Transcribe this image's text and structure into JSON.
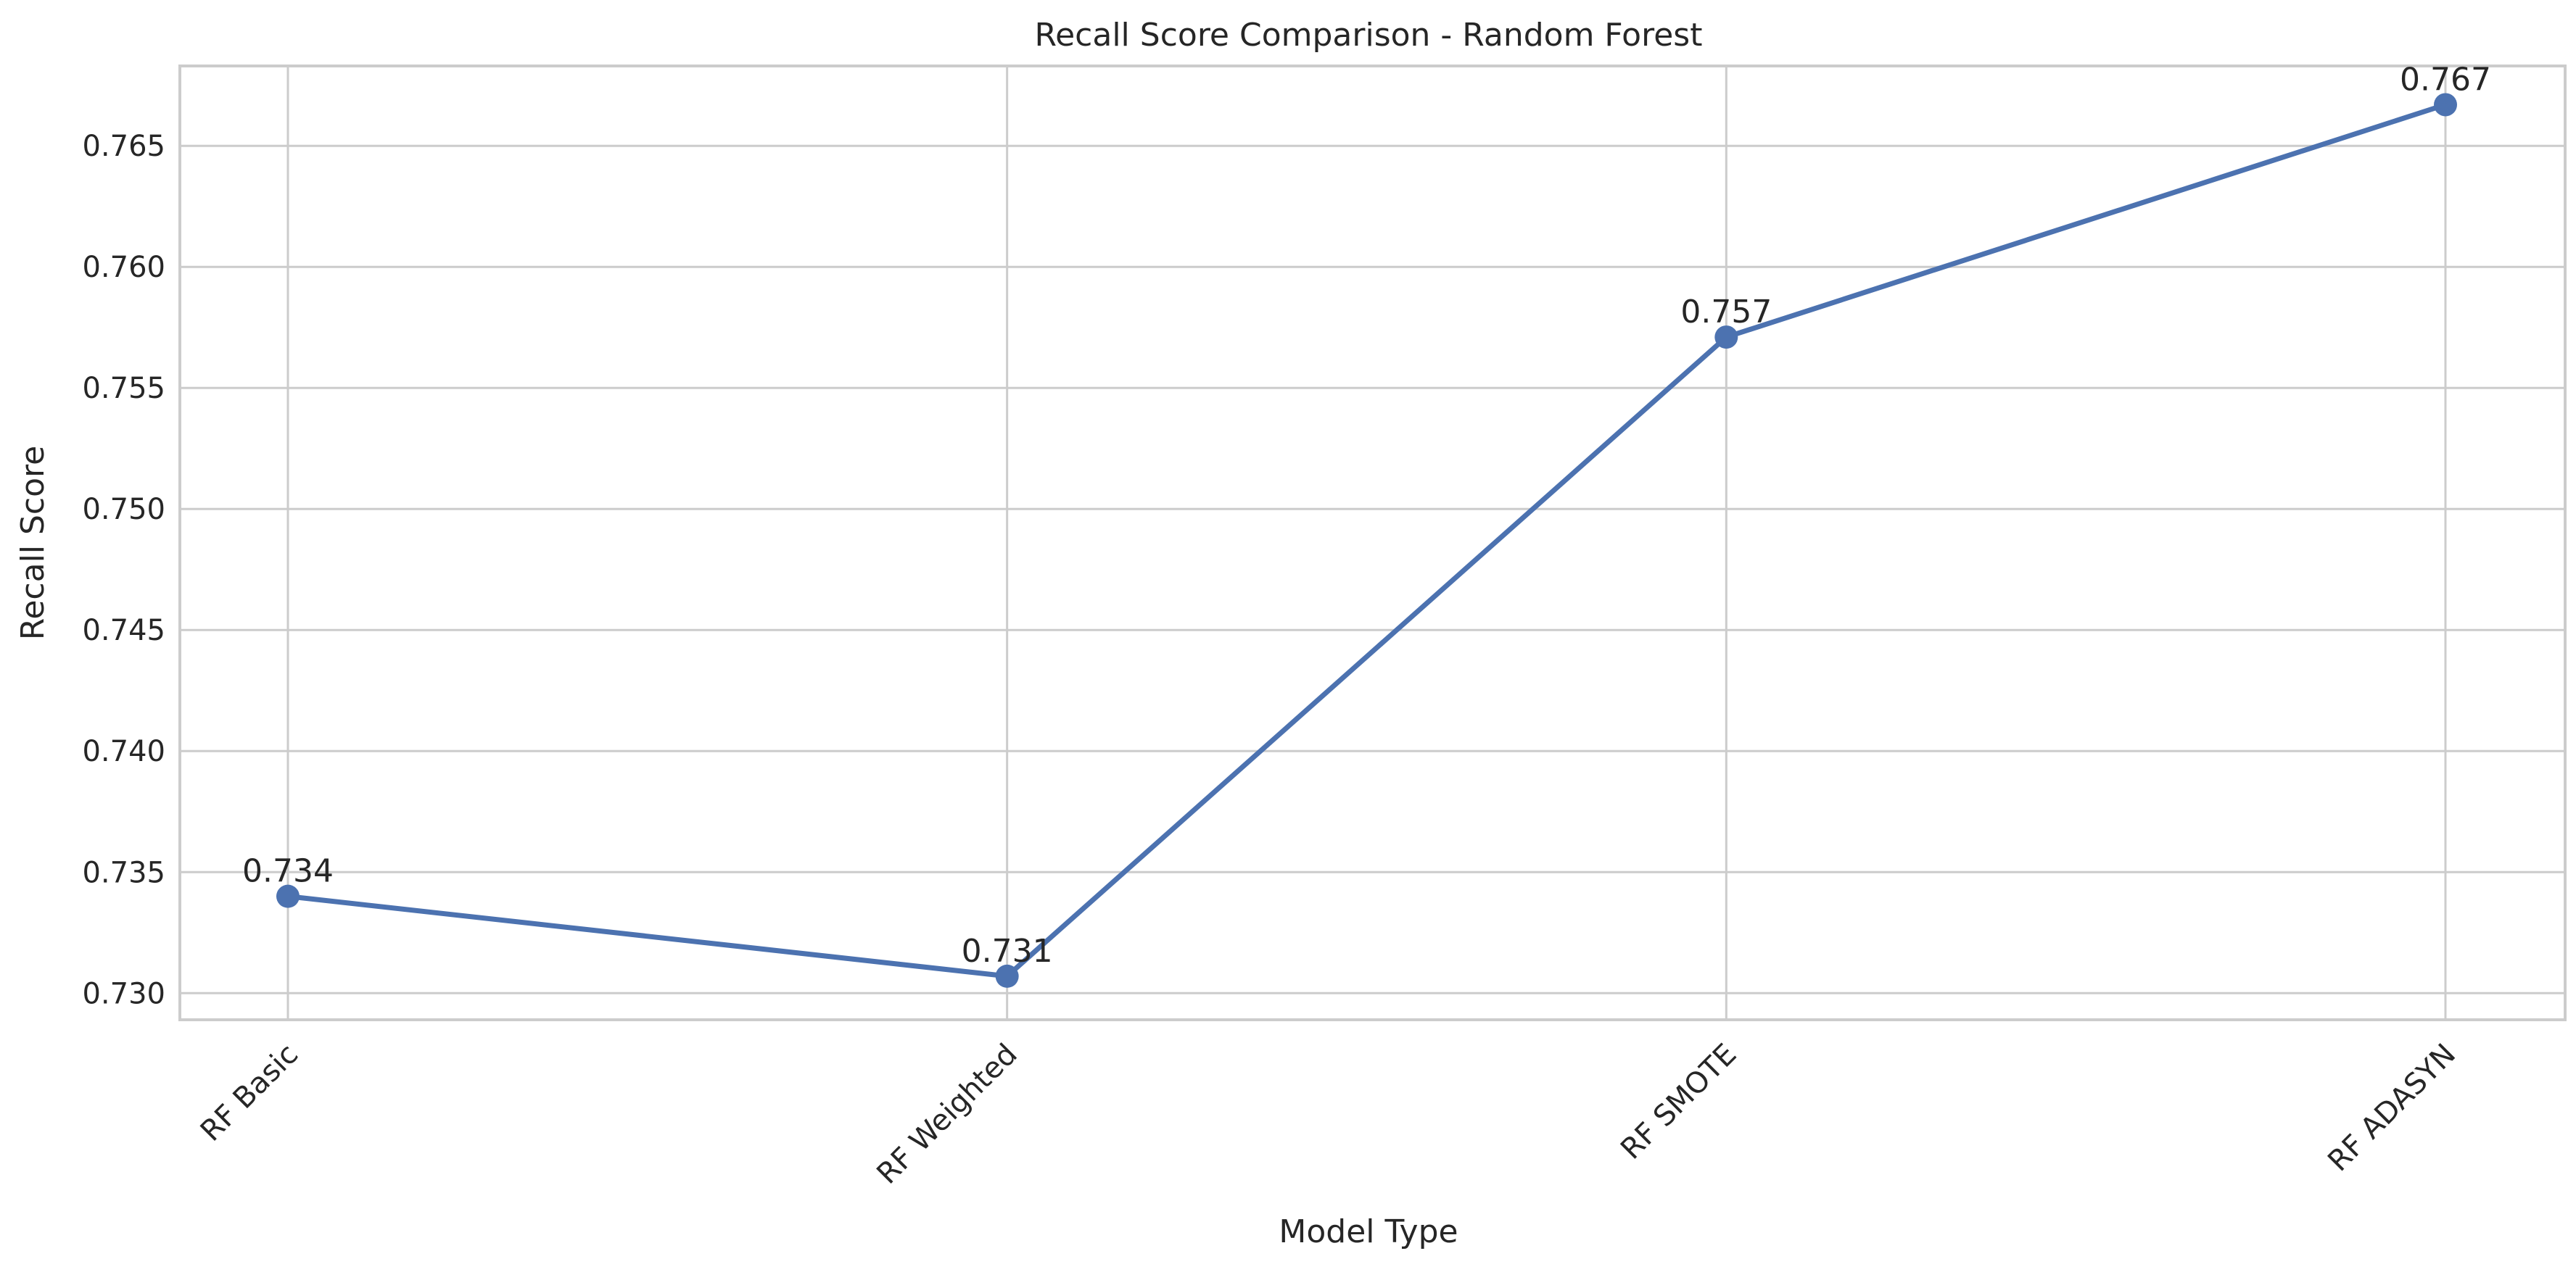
{
  "chart_data": {
    "type": "line",
    "title": "Recall Score Comparison - Random Forest",
    "xlabel": "Model Type",
    "ylabel": "Recall Score",
    "categories": [
      "RF Basic",
      "RF Weighted",
      "RF SMOTE",
      "RF ADASYN"
    ],
    "series": [
      {
        "values": [
          0.734,
          0.7307,
          0.7571,
          0.7667
        ],
        "labels": [
          "0.734",
          "0.731",
          "0.757",
          "0.767"
        ],
        "color": "#4c72b0",
        "marker": "circle"
      }
    ],
    "ylim": [
      0.7289,
      0.7683
    ],
    "yticks": [
      0.73,
      0.735,
      0.74,
      0.745,
      0.75,
      0.755,
      0.76,
      0.765
    ],
    "ytick_labels": [
      "0.730",
      "0.735",
      "0.740",
      "0.745",
      "0.750",
      "0.755",
      "0.760",
      "0.765"
    ],
    "grid": true,
    "xtick_rotation": 45
  }
}
